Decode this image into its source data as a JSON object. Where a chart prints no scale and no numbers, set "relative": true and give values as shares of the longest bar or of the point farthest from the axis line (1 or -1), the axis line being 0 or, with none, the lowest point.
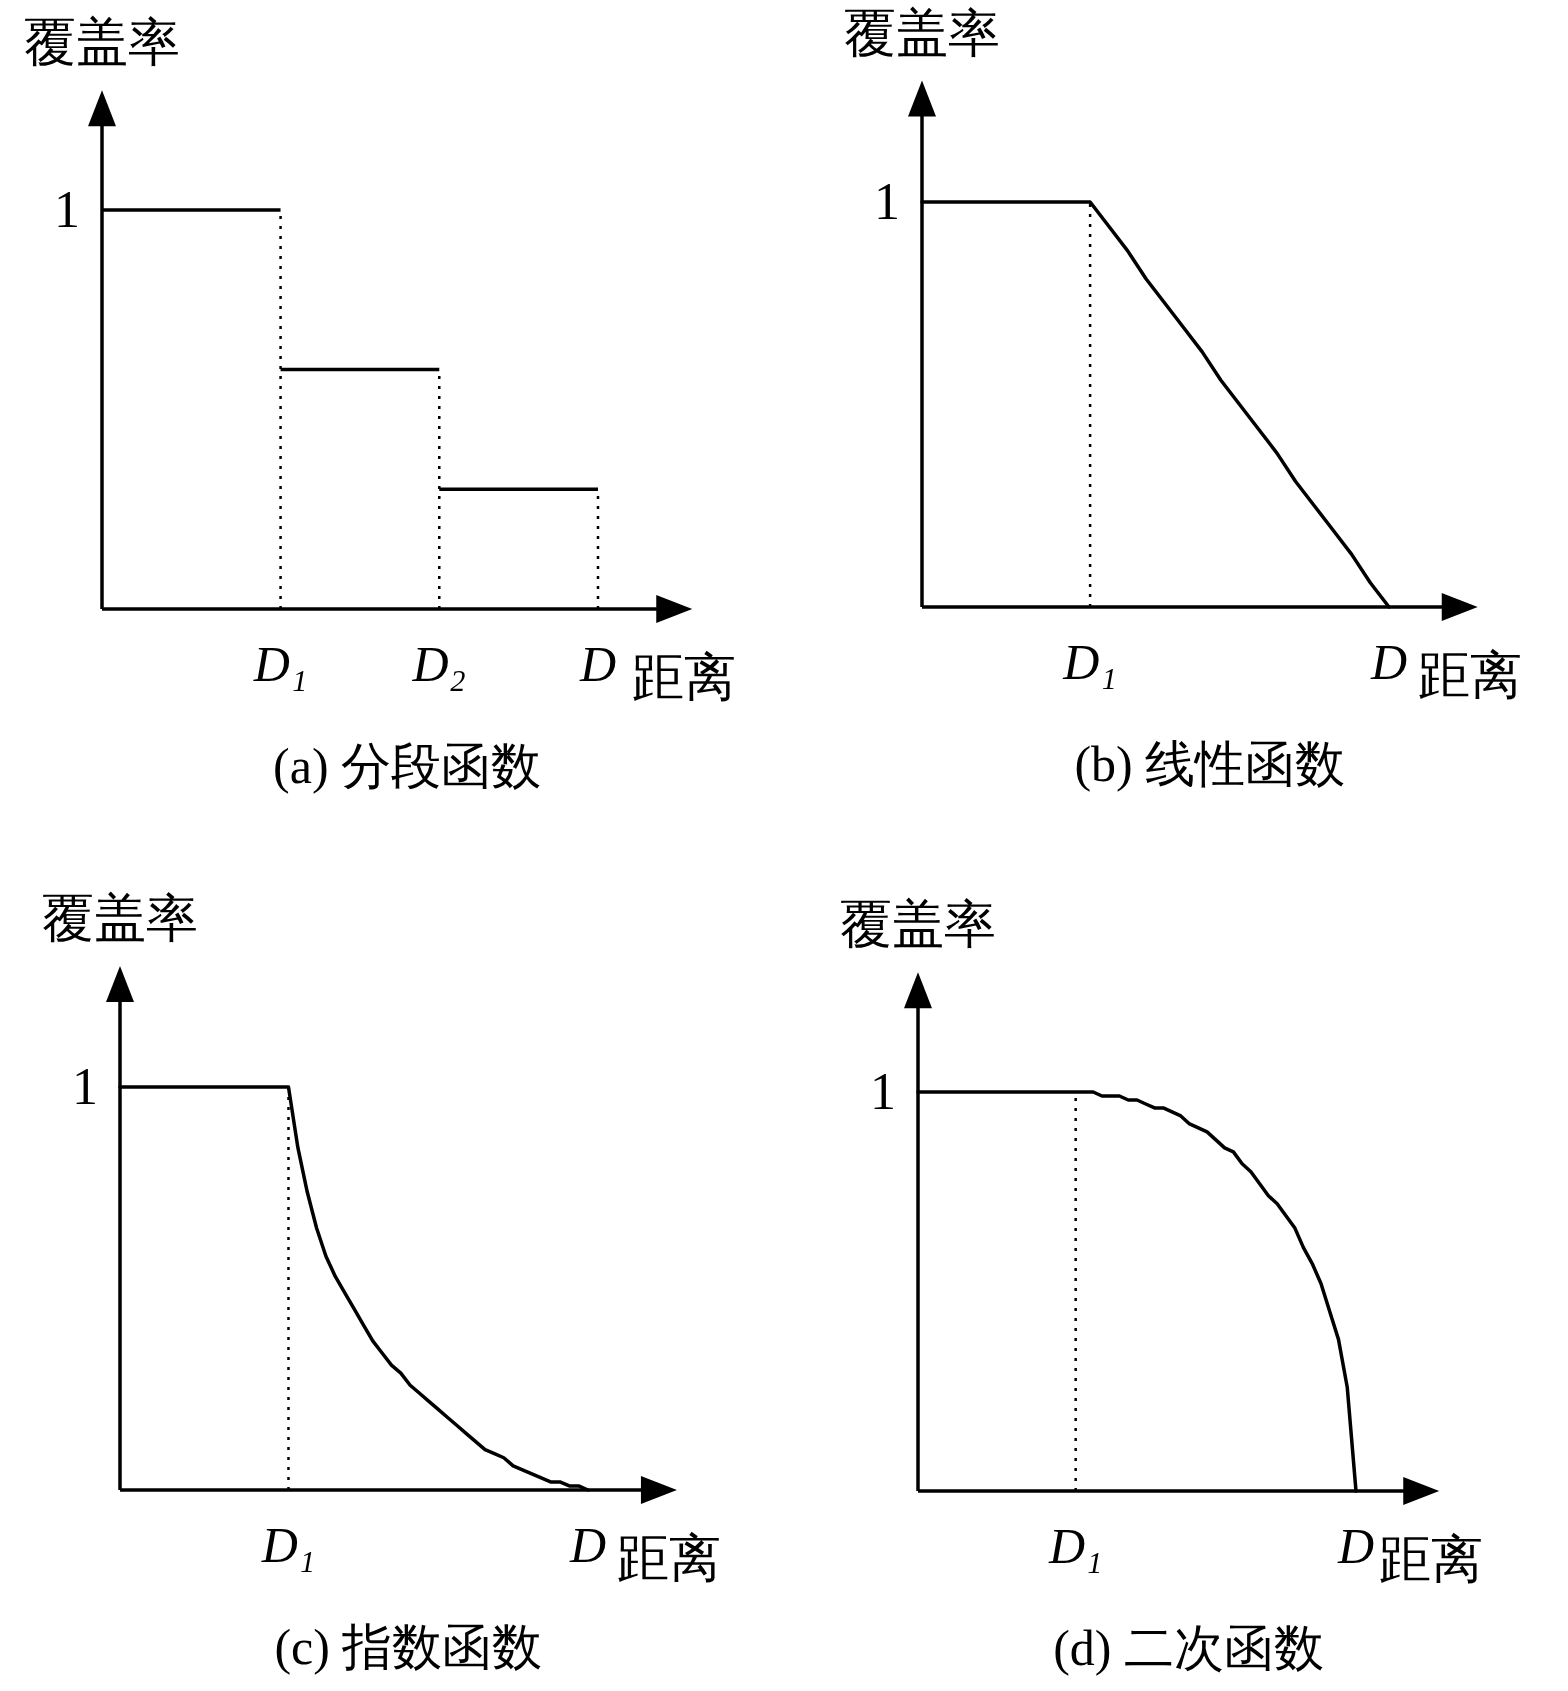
{
  "chart_data": [
    {
      "type": "step",
      "relative": true,
      "title": "(a) 分段函数",
      "xlabel": "距离",
      "ylabel": "覆盖率",
      "categories": [
        null,
        null,
        null,
        null,
        null,
        null,
        null,
        null,
        null,
        "D₁",
        null,
        null,
        null,
        null,
        null,
        null,
        null,
        "D₂",
        null,
        null,
        null,
        null,
        null,
        null,
        null,
        "D"
      ],
      "series": [
        {
          "color": "#000000",
          "values": [
            1,
            1,
            1,
            1,
            1,
            1,
            1,
            1,
            1,
            0.6,
            0.6,
            0.6,
            0.6,
            0.6,
            0.6,
            0.6,
            0.6,
            0.3,
            0.3,
            0.3,
            0.3,
            0.3,
            0.3,
            0.3,
            0.3,
            0.3
          ]
        }
      ],
      "ref_lines": [
        {
          "axis": "x",
          "value": "D₁",
          "line_style": "dotted"
        },
        {
          "axis": "x",
          "value": "D₂",
          "line_style": "dotted"
        },
        {
          "axis": "x",
          "value": "D",
          "line_style": "dotted"
        }
      ],
      "annotations": [
        "1"
      ]
    },
    {
      "type": "line",
      "relative": true,
      "title": "(b) 线性函数",
      "xlabel": "距离",
      "ylabel": "覆盖率",
      "categories": [
        null,
        null,
        null,
        null,
        null,
        null,
        null,
        null,
        null,
        "D₁",
        null,
        null,
        null,
        null,
        null,
        null,
        null,
        null,
        null,
        null,
        null,
        null,
        null,
        null,
        null,
        "D"
      ],
      "series": [
        {
          "color": "#000000",
          "values": [
            1,
            1,
            1,
            1,
            1,
            1,
            1,
            1,
            1,
            1,
            0.94,
            0.88,
            0.81,
            0.75,
            0.69,
            0.63,
            0.56,
            0.5,
            0.44,
            0.38,
            0.31,
            0.25,
            0.19,
            0.13,
            0.06,
            0
          ]
        }
      ],
      "ref_lines": [
        {
          "axis": "x",
          "value": "D₁",
          "line_style": "dotted"
        }
      ],
      "annotations": [
        "1"
      ]
    },
    {
      "type": "line",
      "relative": true,
      "title": "(c) 指数函数",
      "xlabel": "距离",
      "ylabel": "覆盖率",
      "categories": [
        null,
        null,
        null,
        null,
        null,
        null,
        null,
        null,
        null,
        null,
        null,
        null,
        null,
        null,
        null,
        null,
        null,
        null,
        "D₁",
        null,
        null,
        null,
        null,
        null,
        null,
        null,
        null,
        null,
        null,
        null,
        null,
        null,
        null,
        null,
        null,
        null,
        null,
        null,
        null,
        null,
        null,
        null,
        null,
        null,
        null,
        null,
        null,
        null,
        null,
        null,
        "D"
      ],
      "series": [
        {
          "color": "#000000",
          "values": [
            1,
            1,
            1,
            1,
            1,
            1,
            1,
            1,
            1,
            1,
            1,
            1,
            1,
            1,
            1,
            1,
            1,
            1,
            1,
            0.85,
            0.74,
            0.65,
            0.58,
            0.53,
            0.49,
            0.45,
            0.41,
            0.37,
            0.34,
            0.31,
            0.29,
            0.26,
            0.24,
            0.22,
            0.2,
            0.18,
            0.16,
            0.14,
            0.12,
            0.1,
            0.09,
            0.08,
            0.06,
            0.05,
            0.04,
            0.03,
            0.02,
            0.02,
            0.01,
            0.01,
            0
          ]
        }
      ],
      "ref_lines": [
        {
          "axis": "x",
          "value": "D₁",
          "line_style": "dotted"
        }
      ],
      "annotations": [
        "1"
      ]
    },
    {
      "type": "line",
      "relative": true,
      "title": "(d) 二次函数",
      "xlabel": "距离",
      "ylabel": "覆盖率",
      "categories": [
        null,
        null,
        null,
        null,
        null,
        null,
        null,
        null,
        null,
        null,
        null,
        null,
        null,
        null,
        null,
        null,
        null,
        null,
        "D₁",
        null,
        null,
        null,
        null,
        null,
        null,
        null,
        null,
        null,
        null,
        null,
        null,
        null,
        null,
        null,
        null,
        null,
        null,
        null,
        null,
        null,
        null,
        null,
        null,
        null,
        null,
        null,
        null,
        null,
        null,
        null,
        "D"
      ],
      "series": [
        {
          "color": "#000000",
          "values": [
            1,
            1,
            1,
            1,
            1,
            1,
            1,
            1,
            1,
            1,
            1,
            1,
            1,
            1,
            1,
            1,
            1,
            1,
            1,
            1,
            1,
            0.99,
            0.99,
            0.99,
            0.98,
            0.98,
            0.97,
            0.96,
            0.96,
            0.95,
            0.94,
            0.92,
            0.91,
            0.9,
            0.88,
            0.86,
            0.85,
            0.82,
            0.8,
            0.77,
            0.74,
            0.72,
            0.69,
            0.66,
            0.61,
            0.57,
            0.52,
            0.45,
            0.38,
            0.26,
            0
          ]
        }
      ],
      "ref_lines": [
        {
          "axis": "x",
          "value": "D₁",
          "line_style": "dotted"
        }
      ],
      "annotations": [
        "1"
      ]
    }
  ]
}
